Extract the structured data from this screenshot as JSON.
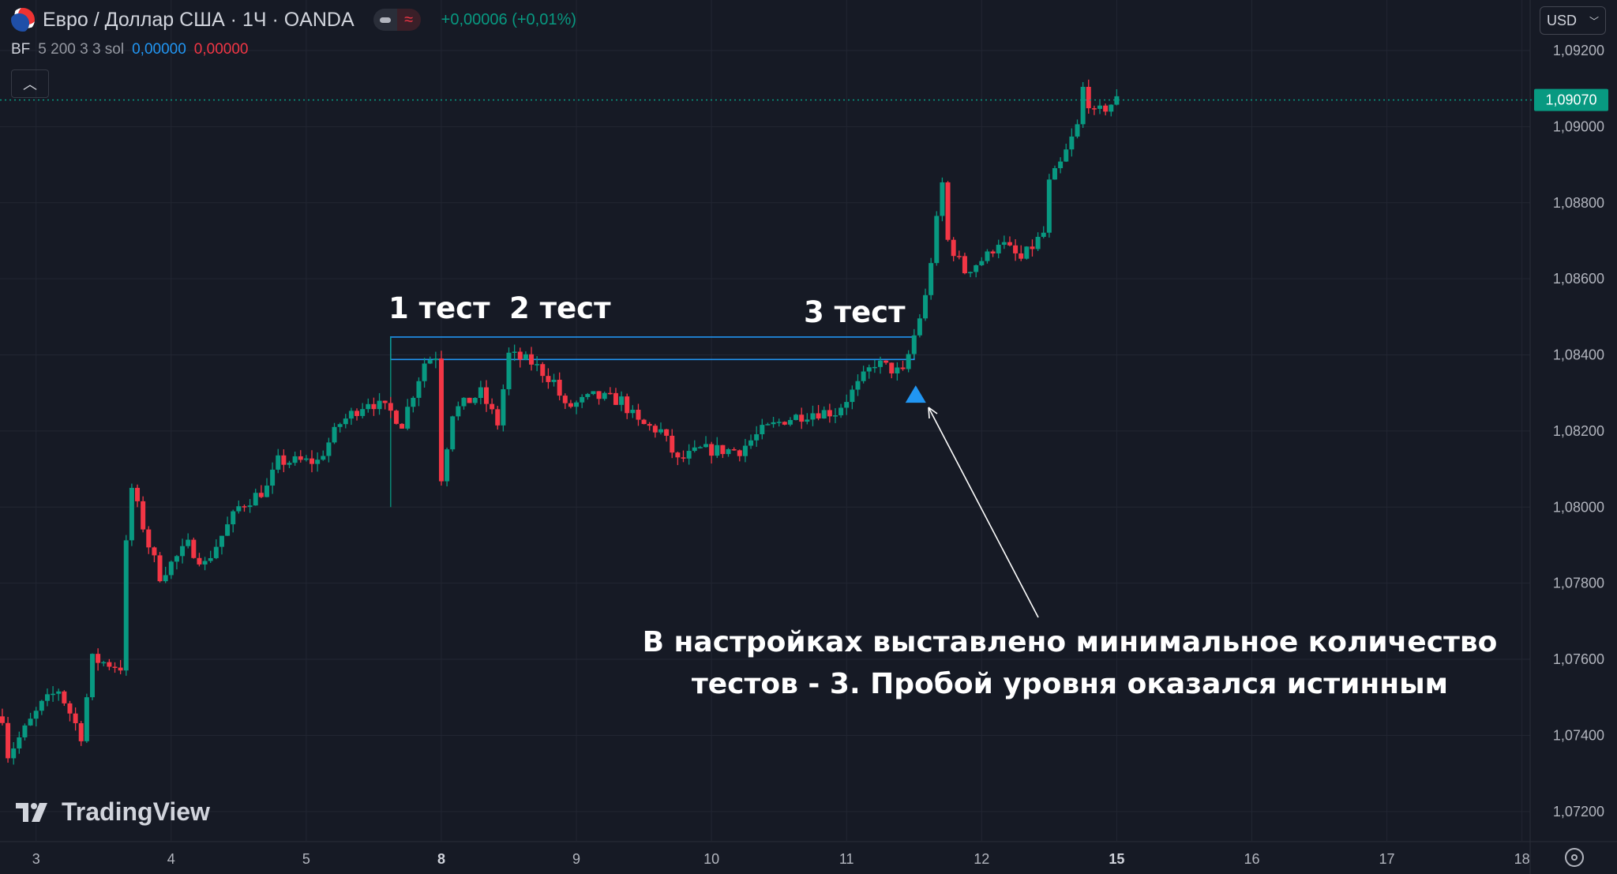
{
  "header": {
    "symbol_title": "Евро / Доллар США · 1Ч · OANDA",
    "change": "+0,00006 (+0,01%)",
    "currency_button": "USD",
    "collapse_icon": "chevron-up-icon"
  },
  "indicator": {
    "name": "BF",
    "params": "5 200 3 3 sol",
    "value1": "0,00000",
    "value2": "0,00000"
  },
  "branding": {
    "logo_text": "TradingView"
  },
  "colors": {
    "background": "#161a25",
    "up": "#089981",
    "down": "#f23645",
    "level": "#2196f3",
    "grid": "#222632"
  },
  "chart_data": {
    "type": "candlestick",
    "symbol": "EURUSD",
    "timeframe": "1H",
    "current_price": 1.0907,
    "current_price_label": "1,09070",
    "y_ticks": [
      "1,09200",
      "1,09000",
      "1,08800",
      "1,08600",
      "1,08400",
      "1,08200",
      "1,08000",
      "1,07800",
      "1,07600",
      "1,07400",
      "1,07200"
    ],
    "y_tick_values": [
      1.092,
      1.09,
      1.088,
      1.086,
      1.084,
      1.082,
      1.08,
      1.078,
      1.076,
      1.074,
      1.072
    ],
    "ylim": [
      1.0715,
      1.0928
    ],
    "x_ticks": [
      "3",
      "4",
      "5",
      "8",
      "9",
      "10",
      "11",
      "12",
      "15",
      "16",
      "17",
      "18"
    ],
    "trading_days": [
      2,
      3,
      4,
      5,
      8,
      9,
      10,
      11,
      12,
      15,
      16,
      17,
      18
    ],
    "grid": true,
    "price_path_day_hour_price": [
      [
        2,
        18,
        1.0745
      ],
      [
        2,
        19,
        1.0735
      ],
      [
        3,
        1,
        1.0748
      ],
      [
        3,
        4,
        1.0752
      ],
      [
        3,
        8,
        1.074
      ],
      [
        3,
        10,
        1.076
      ],
      [
        3,
        15,
        1.0758
      ],
      [
        3,
        16,
        1.079
      ],
      [
        3,
        17,
        1.0805
      ],
      [
        3,
        20,
        1.079
      ],
      [
        3,
        22,
        1.0782
      ],
      [
        4,
        3,
        1.079
      ],
      [
        4,
        6,
        1.0785
      ],
      [
        4,
        12,
        1.08
      ],
      [
        4,
        17,
        1.0805
      ],
      [
        4,
        19,
        1.0812
      ],
      [
        5,
        2,
        1.0812
      ],
      [
        5,
        6,
        1.0822
      ],
      [
        5,
        11,
        1.0828
      ],
      [
        5,
        15,
        1.0825
      ],
      [
        5,
        17,
        1.0822
      ],
      [
        5,
        21,
        1.0838
      ],
      [
        5,
        23,
        1.084
      ],
      [
        8,
        0,
        1.0808
      ],
      [
        8,
        2,
        1.0825
      ],
      [
        8,
        7,
        1.083
      ],
      [
        8,
        10,
        1.0822
      ],
      [
        8,
        12,
        1.084
      ],
      [
        8,
        16,
        1.0838
      ],
      [
        8,
        20,
        1.0833
      ],
      [
        8,
        22,
        1.0826
      ],
      [
        9,
        3,
        1.0829
      ],
      [
        9,
        8,
        1.0828
      ],
      [
        9,
        11,
        1.0822
      ],
      [
        9,
        15,
        1.082
      ],
      [
        9,
        18,
        1.0812
      ],
      [
        9,
        22,
        1.0815
      ],
      [
        10,
        5,
        1.0815
      ],
      [
        10,
        9,
        1.082
      ],
      [
        10,
        13,
        1.0823
      ],
      [
        10,
        18,
        1.0825
      ],
      [
        10,
        22,
        1.0825
      ],
      [
        11,
        2,
        1.0832
      ],
      [
        11,
        5,
        1.0838
      ],
      [
        11,
        10,
        1.0835
      ],
      [
        11,
        12,
        1.0845
      ],
      [
        11,
        14,
        1.0855
      ],
      [
        11,
        15,
        1.0865
      ],
      [
        11,
        17,
        1.0885
      ],
      [
        11,
        18,
        1.087
      ],
      [
        11,
        21,
        1.0862
      ],
      [
        12,
        1,
        1.0866
      ],
      [
        12,
        3,
        1.087
      ],
      [
        12,
        7,
        1.0865
      ],
      [
        12,
        11,
        1.0872
      ],
      [
        12,
        12,
        1.0885
      ],
      [
        12,
        14,
        1.089
      ],
      [
        12,
        17,
        1.09
      ],
      [
        12,
        18,
        1.091
      ],
      [
        12,
        20,
        1.0903
      ],
      [
        12,
        24,
        1.0907
      ]
    ],
    "level": {
      "upper": 1.08447,
      "lower": 1.08388,
      "start": [
        5,
        15
      ],
      "end": [
        11,
        12
      ]
    },
    "signal": {
      "type": "buy-triangle",
      "at": [
        11,
        12
      ],
      "price": 1.0832
    },
    "annotations": {
      "test1": "1 тест",
      "test2": "2 тест",
      "test3": "3 тест",
      "note_line1": "В настройках выставлено минимальное количество",
      "note_line2": "тестов - 3. Пробой уровня оказался истинным"
    }
  }
}
